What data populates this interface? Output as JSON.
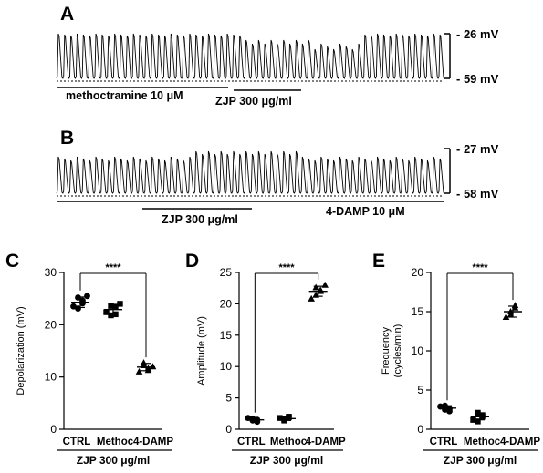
{
  "figure": {
    "panel_labels": [
      "A",
      "B",
      "C",
      "D",
      "E"
    ],
    "trace_a": {
      "top_mv": "- 26 mV",
      "bottom_mv": "- 59 mV",
      "drug_label": "methoctramine 10 μM",
      "zjp_label": "ZJP 300 μg/ml"
    },
    "trace_b": {
      "top_mv": "- 27 mV",
      "bottom_mv": "- 58 mV",
      "zjp_label": "ZJP 300 μg/ml",
      "drug_label": "4-DAMP 10 μM"
    }
  },
  "chart_data": [
    {
      "type": "scatter",
      "panel": "C",
      "ylabel": "Depolarization (mV)",
      "xlabel": "ZJP 300 μg/ml",
      "categories": [
        "CTRL",
        "Methoc",
        "4-DAMP"
      ],
      "ylim": [
        0,
        30
      ],
      "yticks": [
        0,
        10,
        20,
        30
      ],
      "markers": [
        "circle",
        "square",
        "triangle"
      ],
      "points": [
        [
          23.5,
          25.2,
          24.6,
          23.1,
          24.1,
          25.5
        ],
        [
          22.4,
          23.6,
          22.0,
          21.8,
          23.4,
          24.0
        ],
        [
          11.0,
          12.2,
          11.6,
          12.7,
          11.3,
          12.0
        ]
      ],
      "mean": [
        24.3,
        22.9,
        11.9
      ],
      "sd": [
        1.0,
        1.0,
        0.7
      ],
      "significance": {
        "from": 0,
        "to": 2,
        "label": "****"
      }
    },
    {
      "type": "scatter",
      "panel": "D",
      "ylabel": "Amplitude (mV)",
      "xlabel": "ZJP 300 μg/ml",
      "categories": [
        "CTRL",
        "Methoc",
        "4-DAMP"
      ],
      "ylim": [
        0,
        25
      ],
      "yticks": [
        0,
        5,
        10,
        15,
        20,
        25
      ],
      "markers": [
        "circle",
        "square",
        "triangle"
      ],
      "points": [
        [
          1.8,
          1.4,
          1.2,
          1.7,
          1.5
        ],
        [
          1.8,
          1.6,
          2.0,
          1.4,
          1.9
        ],
        [
          20.8,
          21.4,
          22.0,
          22.6,
          22.2,
          23.0
        ]
      ],
      "mean": [
        1.5,
        1.7,
        22.0
      ],
      "sd": [
        0.3,
        0.3,
        0.8
      ],
      "significance": {
        "from": 0,
        "to": 2,
        "label": "****"
      }
    },
    {
      "type": "scatter",
      "panel": "E",
      "ylabel": "Frequency (cycles/min)",
      "xlabel": "ZJP 300 μg/ml",
      "categories": [
        "CTRL",
        "Methoc",
        "4-DAMP"
      ],
      "ylim": [
        0,
        20
      ],
      "yticks": [
        0,
        5,
        10,
        15,
        20
      ],
      "markers": [
        "circle",
        "square",
        "triangle"
      ],
      "points": [
        [
          2.9,
          2.5,
          2.3,
          3.0,
          2.6
        ],
        [
          1.2,
          2.1,
          1.6,
          1.0,
          1.8
        ],
        [
          14.3,
          15.0,
          15.8,
          14.6,
          15.5
        ]
      ],
      "mean": [
        2.7,
        1.6,
        15.0
      ],
      "sd": [
        0.3,
        0.4,
        0.7
      ],
      "significance": {
        "from": 0,
        "to": 2,
        "label": "****"
      }
    }
  ]
}
